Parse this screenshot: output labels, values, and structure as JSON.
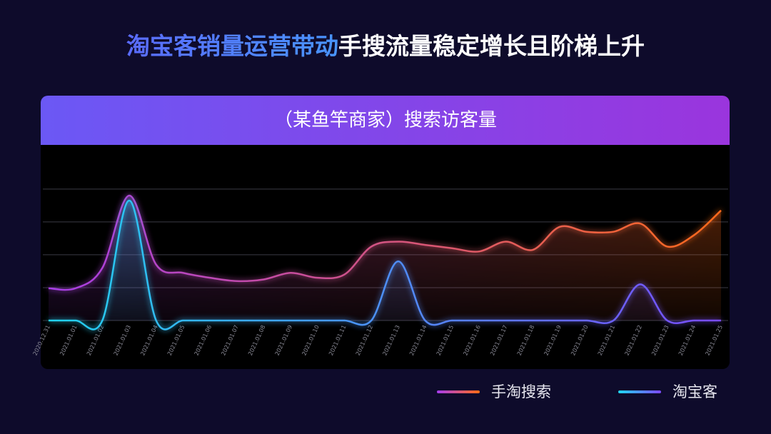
{
  "header": {
    "highlight": "淘宝客销量运营带动",
    "rest": "手搜流量稳定增长且阶梯上升"
  },
  "chart_data": {
    "type": "line",
    "title": "（某鱼竿商家）搜索访客量",
    "x": [
      "2020.12.31",
      "2021.01.01",
      "2021.01.02",
      "2021.01.03",
      "2021.01.04",
      "2021.01.05",
      "2021.01.06",
      "2021.01.07",
      "2021.01.08",
      "2021.01.09",
      "2021.01.10",
      "2021.01.11",
      "2021.01.12",
      "2021.01.13",
      "2021.01.14",
      "2021.01.15",
      "2021.01.16",
      "2021.01.17",
      "2021.01.18",
      "2021.01.19",
      "2021.01.20",
      "2021.01.21",
      "2021.01.22",
      "2021.01.23",
      "2021.01.24",
      "2021.01.25"
    ],
    "series": [
      {
        "name": "手淘搜索",
        "color": [
          "#a83ee8",
          "#ff6a1a"
        ],
        "values": [
          0.98,
          0.98,
          1.6,
          3.8,
          1.7,
          1.45,
          1.3,
          1.2,
          1.25,
          1.45,
          1.3,
          1.4,
          2.25,
          2.4,
          2.3,
          2.2,
          2.1,
          2.4,
          2.15,
          2.85,
          2.7,
          2.7,
          2.95,
          2.25,
          2.6,
          3.35
        ]
      },
      {
        "name": "淘宝客",
        "color": [
          "#22d3f0",
          "#7a4cff"
        ],
        "values": [
          0,
          0,
          0,
          3.65,
          0,
          0,
          0,
          0,
          0,
          0,
          0,
          0,
          0,
          1.8,
          0,
          0,
          0,
          0,
          0,
          0,
          0,
          0,
          1.1,
          0,
          0,
          0
        ]
      }
    ],
    "ylim": [
      0,
      5.3
    ],
    "yticks": [
      0,
      1,
      2,
      3,
      4
    ],
    "grid": true
  }
}
